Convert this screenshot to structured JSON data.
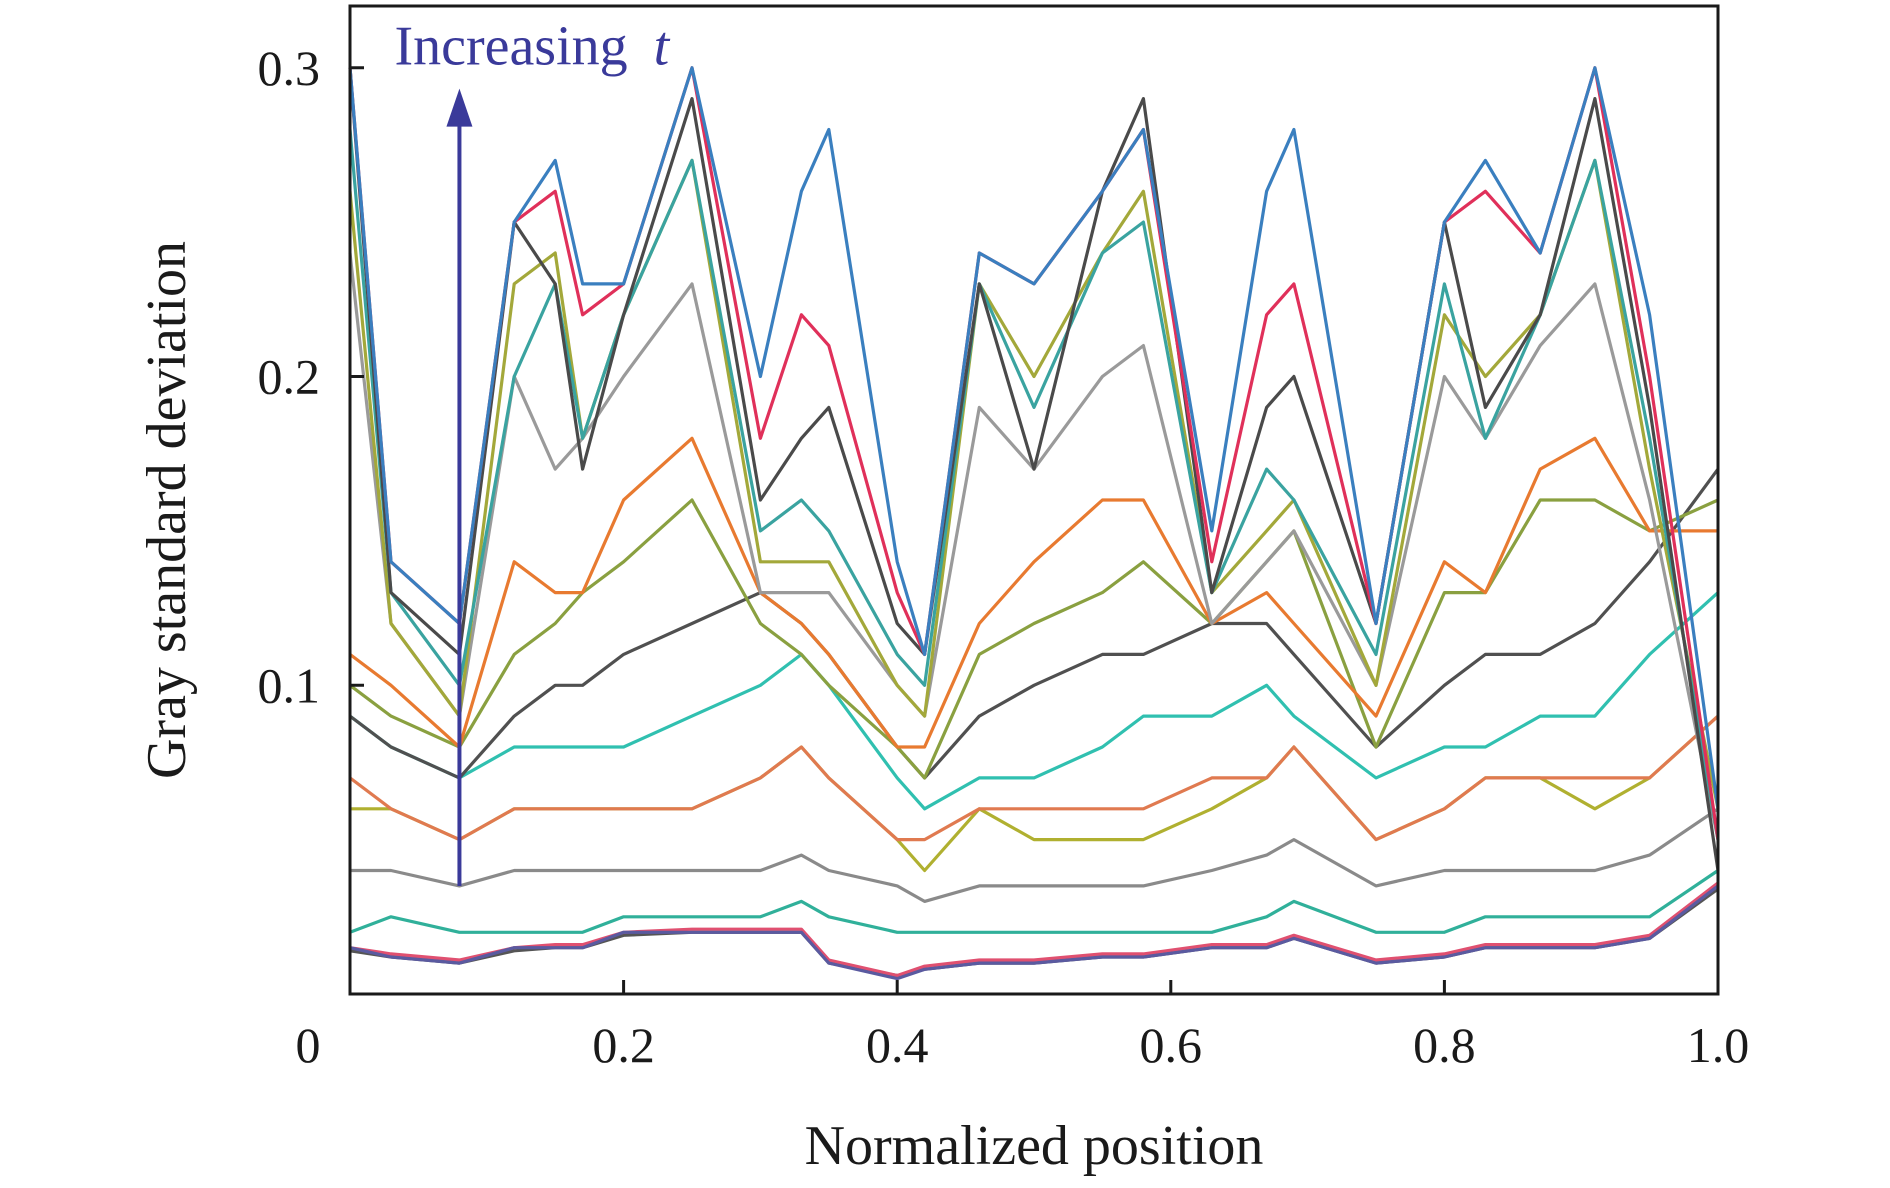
{
  "chart_data": {
    "type": "line",
    "xlabel": "Normalized position",
    "ylabel": "Gray standard deviation",
    "xlim": [
      0,
      1.0
    ],
    "ylim": [
      0.0,
      0.32
    ],
    "x_ticks": [
      {
        "value": 0,
        "label": "0"
      },
      {
        "value": 0.2,
        "label": "0.2"
      },
      {
        "value": 0.4,
        "label": "0.4"
      },
      {
        "value": 0.6,
        "label": "0.6"
      },
      {
        "value": 0.8,
        "label": "0.8"
      },
      {
        "value": 1.0,
        "label": "1.0"
      }
    ],
    "y_ticks": [
      {
        "value": 0.1,
        "label": "0.1"
      },
      {
        "value": 0.2,
        "label": "0.2"
      },
      {
        "value": 0.3,
        "label": "0.3"
      }
    ],
    "grid": false,
    "legend": "none",
    "annotation": {
      "text": "Increasing",
      "variable": "t",
      "arrow_from": {
        "x": 0.08,
        "y": 0.035
      },
      "arrow_to": {
        "x": 0.08,
        "y": 0.29
      },
      "color": "#3a3a9a"
    },
    "x": [
      0.0,
      0.03,
      0.08,
      0.12,
      0.15,
      0.17,
      0.2,
      0.25,
      0.3,
      0.33,
      0.35,
      0.4,
      0.42,
      0.46,
      0.5,
      0.55,
      0.58,
      0.63,
      0.67,
      0.69,
      0.75,
      0.8,
      0.83,
      0.87,
      0.91,
      0.95,
      1.0
    ],
    "series": [
      {
        "color": "#3a7fbf",
        "values": [
          0.3,
          0.14,
          0.12,
          0.25,
          0.27,
          0.23,
          0.23,
          0.3,
          0.2,
          0.26,
          0.28,
          0.14,
          0.11,
          0.24,
          0.23,
          0.26,
          0.28,
          0.15,
          0.26,
          0.28,
          0.12,
          0.25,
          0.27,
          0.24,
          0.3,
          0.22,
          0.06
        ]
      },
      {
        "color": "#e0305a",
        "values": [
          0.3,
          0.14,
          0.12,
          0.25,
          0.26,
          0.22,
          0.23,
          0.3,
          0.18,
          0.22,
          0.21,
          0.13,
          0.11,
          0.24,
          0.23,
          0.26,
          0.28,
          0.14,
          0.22,
          0.23,
          0.12,
          0.25,
          0.26,
          0.24,
          0.3,
          0.2,
          0.05
        ]
      },
      {
        "color": "#4a4a4a",
        "values": [
          0.3,
          0.13,
          0.11,
          0.25,
          0.23,
          0.17,
          0.22,
          0.29,
          0.16,
          0.18,
          0.19,
          0.12,
          0.11,
          0.23,
          0.17,
          0.26,
          0.29,
          0.13,
          0.19,
          0.2,
          0.12,
          0.25,
          0.19,
          0.22,
          0.29,
          0.19,
          0.04
        ]
      },
      {
        "color": "#3aa3a0",
        "values": [
          0.28,
          0.13,
          0.1,
          0.2,
          0.23,
          0.18,
          0.22,
          0.27,
          0.15,
          0.16,
          0.15,
          0.11,
          0.1,
          0.23,
          0.19,
          0.24,
          0.25,
          0.13,
          0.17,
          0.16,
          0.11,
          0.23,
          0.18,
          0.22,
          0.27,
          0.18,
          0.05
        ]
      },
      {
        "color": "#a3a83a",
        "values": [
          0.26,
          0.12,
          0.09,
          0.23,
          0.24,
          0.18,
          0.22,
          0.27,
          0.14,
          0.14,
          0.14,
          0.1,
          0.09,
          0.23,
          0.2,
          0.24,
          0.26,
          0.13,
          0.15,
          0.16,
          0.1,
          0.22,
          0.2,
          0.22,
          0.27,
          0.17,
          0.06
        ]
      },
      {
        "color": "#9a9a9a",
        "values": [
          0.24,
          0.12,
          0.09,
          0.2,
          0.17,
          0.18,
          0.2,
          0.23,
          0.13,
          0.13,
          0.13,
          0.1,
          0.09,
          0.19,
          0.17,
          0.2,
          0.21,
          0.12,
          0.14,
          0.15,
          0.1,
          0.2,
          0.18,
          0.21,
          0.23,
          0.16,
          0.05
        ]
      },
      {
        "color": "#e87a30",
        "values": [
          0.11,
          0.1,
          0.08,
          0.14,
          0.13,
          0.13,
          0.16,
          0.18,
          0.13,
          0.12,
          0.11,
          0.08,
          0.08,
          0.12,
          0.14,
          0.16,
          0.16,
          0.12,
          0.13,
          0.12,
          0.09,
          0.14,
          0.13,
          0.17,
          0.18,
          0.15,
          0.15
        ]
      },
      {
        "color": "#8aa040",
        "values": [
          0.1,
          0.09,
          0.08,
          0.11,
          0.12,
          0.13,
          0.14,
          0.16,
          0.12,
          0.11,
          0.1,
          0.08,
          0.07,
          0.11,
          0.12,
          0.13,
          0.14,
          0.12,
          0.14,
          0.15,
          0.08,
          0.13,
          0.13,
          0.16,
          0.16,
          0.15,
          0.16
        ]
      },
      {
        "color": "#505050",
        "values": [
          0.09,
          0.08,
          0.07,
          0.09,
          0.1,
          0.1,
          0.11,
          0.12,
          0.13,
          0.12,
          0.11,
          0.08,
          0.07,
          0.09,
          0.1,
          0.11,
          0.11,
          0.12,
          0.12,
          0.11,
          0.08,
          0.1,
          0.11,
          0.11,
          0.12,
          0.14,
          0.17
        ]
      },
      {
        "color": "#30c0b0",
        "values": [
          0.09,
          0.08,
          0.07,
          0.08,
          0.08,
          0.08,
          0.08,
          0.09,
          0.1,
          0.11,
          0.1,
          0.07,
          0.06,
          0.07,
          0.07,
          0.08,
          0.09,
          0.09,
          0.1,
          0.09,
          0.07,
          0.08,
          0.08,
          0.09,
          0.09,
          0.11,
          0.13
        ]
      },
      {
        "color": "#e07a50",
        "values": [
          0.07,
          0.06,
          0.05,
          0.06,
          0.06,
          0.06,
          0.06,
          0.06,
          0.07,
          0.08,
          0.07,
          0.05,
          0.05,
          0.06,
          0.06,
          0.06,
          0.06,
          0.07,
          0.07,
          0.08,
          0.05,
          0.06,
          0.07,
          0.07,
          0.07,
          0.07,
          0.09
        ]
      },
      {
        "color": "#b0b030",
        "values": [
          0.06,
          0.06,
          0.05,
          0.06,
          0.06,
          0.06,
          0.06,
          0.06,
          0.07,
          0.08,
          0.07,
          0.05,
          0.04,
          0.06,
          0.05,
          0.05,
          0.05,
          0.06,
          0.07,
          0.08,
          0.05,
          0.06,
          0.07,
          0.07,
          0.06,
          0.07,
          0.09
        ]
      },
      {
        "color": "#8a8a8a",
        "values": [
          0.04,
          0.04,
          0.035,
          0.04,
          0.04,
          0.04,
          0.04,
          0.04,
          0.04,
          0.045,
          0.04,
          0.035,
          0.03,
          0.035,
          0.035,
          0.035,
          0.035,
          0.04,
          0.045,
          0.05,
          0.035,
          0.04,
          0.04,
          0.04,
          0.04,
          0.045,
          0.06
        ]
      },
      {
        "color": "#30b09a",
        "values": [
          0.02,
          0.025,
          0.02,
          0.02,
          0.02,
          0.02,
          0.025,
          0.025,
          0.025,
          0.03,
          0.025,
          0.02,
          0.02,
          0.02,
          0.02,
          0.02,
          0.02,
          0.02,
          0.025,
          0.03,
          0.02,
          0.02,
          0.025,
          0.025,
          0.025,
          0.025,
          0.04
        ]
      },
      {
        "color": "#5a5aa0",
        "values": [
          0.015,
          0.012,
          0.01,
          0.015,
          0.015,
          0.015,
          0.02,
          0.02,
          0.02,
          0.02,
          0.01,
          0.005,
          0.008,
          0.01,
          0.01,
          0.012,
          0.012,
          0.015,
          0.015,
          0.018,
          0.01,
          0.012,
          0.015,
          0.015,
          0.015,
          0.018,
          0.035
        ]
      },
      {
        "color": "#e05070",
        "values": [
          0.015,
          0.013,
          0.011,
          0.015,
          0.016,
          0.016,
          0.02,
          0.021,
          0.021,
          0.021,
          0.011,
          0.006,
          0.009,
          0.011,
          0.011,
          0.013,
          0.013,
          0.016,
          0.016,
          0.019,
          0.011,
          0.013,
          0.016,
          0.016,
          0.016,
          0.019,
          0.036
        ]
      },
      {
        "color": "#555555",
        "values": [
          0.014,
          0.012,
          0.01,
          0.014,
          0.015,
          0.015,
          0.019,
          0.02,
          0.02,
          0.02,
          0.01,
          0.006,
          0.008,
          0.01,
          0.01,
          0.012,
          0.012,
          0.015,
          0.015,
          0.018,
          0.01,
          0.012,
          0.015,
          0.015,
          0.015,
          0.018,
          0.034
        ]
      }
    ]
  }
}
